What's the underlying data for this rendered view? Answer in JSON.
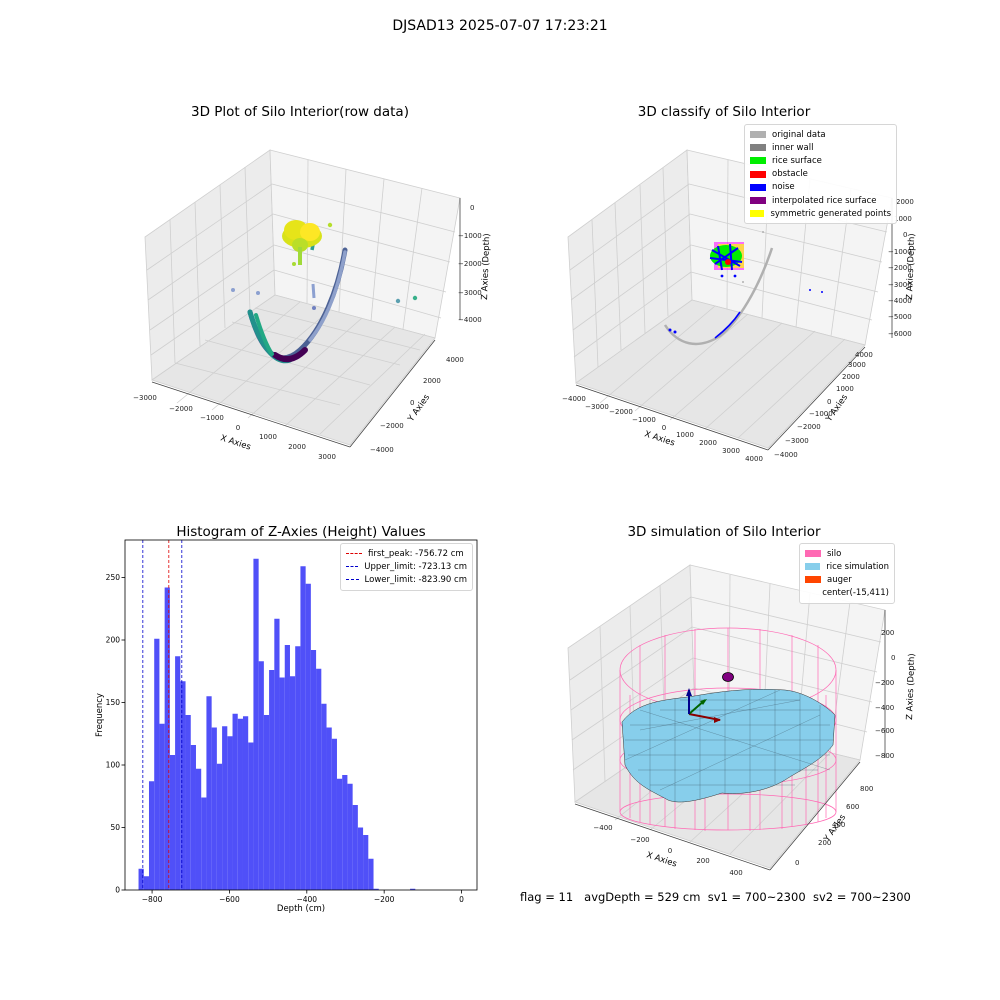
{
  "suptitle": "DJSAD13 2025-07-07 17:23:21",
  "footer": {
    "flag": "flag = 11",
    "avg_depth": "avgDepth = 529 cm",
    "sv1": "sv1 = 700~2300",
    "sv2": "sv2 = 700~2300"
  },
  "colors": {
    "hist_bar": "#5050f8",
    "silo": "#ff69b4",
    "rice": "#87ceeb",
    "auger": "#ff4500",
    "first_peak_line": "#dd0000",
    "limit_line": "#0000cc"
  },
  "chart_data": [
    {
      "type": "scatter",
      "kind": "3d",
      "title": "3D Plot of Silo Interior(row data)",
      "xlabel": "X Axies",
      "ylabel": "Y Axies",
      "zlabel": "Z Axies (Depth)",
      "x_ticks": [
        "−3000",
        "−2000",
        "−1000",
        "0",
        "1000",
        "2000",
        "3000"
      ],
      "y_ticks": [
        "−4000",
        "−2000",
        "0",
        "2000",
        "4000"
      ],
      "z_ticks": [
        "0",
        "−1000",
        "−2000",
        "−3000",
        "−4000"
      ],
      "colormap": "viridis"
    },
    {
      "type": "scatter",
      "kind": "3d",
      "title": "3D classify of Silo Interior",
      "xlabel": "X Axies",
      "ylabel": "Y Axies",
      "zlabel": "Z Axies (Depth)",
      "x_ticks": [
        "−4000",
        "−3000",
        "−2000",
        "−1000",
        "0",
        "1000",
        "2000",
        "3000",
        "4000"
      ],
      "y_ticks": [
        "−4000",
        "−3000",
        "−2000",
        "−1000",
        "0",
        "1000",
        "2000",
        "3000",
        "4000"
      ],
      "z_ticks": [
        "2000",
        "1000",
        "0",
        "−1000",
        "−2000",
        "−3000",
        "−4000",
        "−5000",
        "−6000"
      ],
      "legend": [
        {
          "label": "original data",
          "color": "#b0b0b0"
        },
        {
          "label": "inner wall",
          "color": "#808080"
        },
        {
          "label": "rice surface",
          "color": "#00ee00"
        },
        {
          "label": "obstacle",
          "color": "#ff0000"
        },
        {
          "label": "noise",
          "color": "#0000ff"
        },
        {
          "label": "interpolated rice surface",
          "color": "#800080"
        },
        {
          "label": "symmetric generated points",
          "color": "#ffff00"
        }
      ]
    },
    {
      "type": "bar",
      "kind": "histogram",
      "title": "Histogram of Z-Axies (Height) Values",
      "xlabel": "Depth (cm)",
      "ylabel": "Frequency",
      "xlim": [
        -870,
        40
      ],
      "ylim": [
        0,
        280
      ],
      "x_ticks": [
        -800,
        -600,
        -400,
        -200,
        0
      ],
      "x_tick_labels": [
        "−800",
        "−600",
        "−400",
        "−200",
        "0"
      ],
      "y_ticks": [
        0,
        50,
        100,
        150,
        200,
        250
      ],
      "bin_start": -835,
      "bin_width": 13.5,
      "values": [
        17,
        11,
        87,
        201,
        133,
        242,
        108,
        187,
        167,
        140,
        116,
        97,
        74,
        155,
        130,
        101,
        131,
        123,
        141,
        137,
        139,
        118,
        265,
        183,
        140,
        176,
        217,
        170,
        196,
        171,
        195,
        259,
        245,
        192,
        177,
        149,
        130,
        121,
        89,
        92,
        85,
        68,
        50,
        44,
        25,
        1,
        0,
        0,
        0,
        0,
        0,
        0,
        1
      ],
      "vlines": [
        {
          "label": "first_peak: -756.72 cm",
          "x": -756.72,
          "color": "#dd0000"
        },
        {
          "label": "Upper_limit: -723.13 cm",
          "x": -723.13,
          "color": "#0000cc"
        },
        {
          "label": "Lower_limit: -823.90 cm",
          "x": -823.9,
          "color": "#0000cc"
        }
      ]
    },
    {
      "type": "other",
      "kind": "3d-surface",
      "title": "3D simulation of Silo Interior",
      "xlabel": "X Axies",
      "ylabel": "Y Axies",
      "zlabel": "Z Axies (Depth)",
      "x_ticks": [
        "−400",
        "−200",
        "0",
        "200",
        "400"
      ],
      "y_ticks": [
        "0",
        "200",
        "400",
        "600",
        "800"
      ],
      "z_ticks": [
        "200",
        "0",
        "−200",
        "−400",
        "−600",
        "−800"
      ],
      "legend": [
        {
          "label": "silo",
          "color": "#ff69b4"
        },
        {
          "label": "rice simulation",
          "color": "#87ceeb"
        },
        {
          "label": "auger",
          "color": "#ff4500"
        },
        {
          "label": "center(-15,411)",
          "color": ""
        }
      ]
    }
  ]
}
